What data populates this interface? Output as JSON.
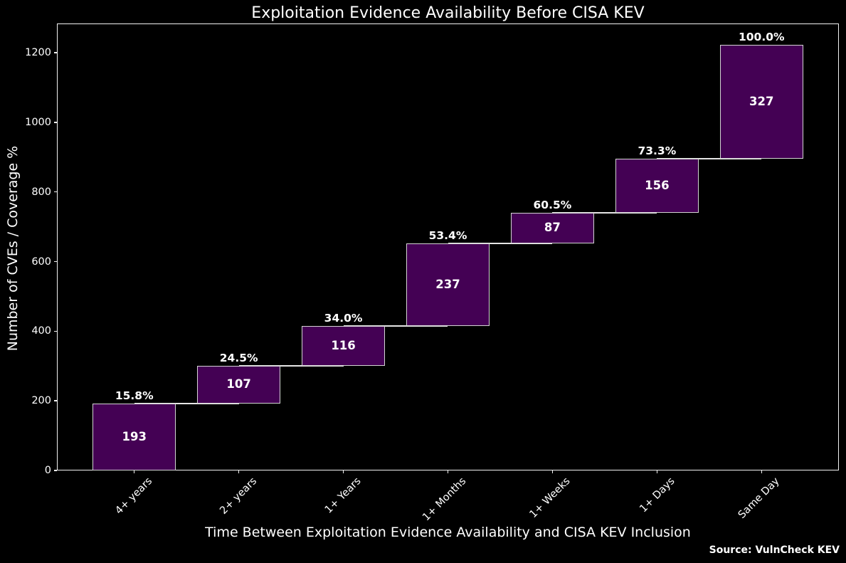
{
  "chart_data": {
    "type": "bar",
    "subtype": "waterfall",
    "title": "Exploitation Evidence Availability Before CISA KEV",
    "xlabel": "Time Between Exploitation Evidence Availability and CISA KEV Inclusion",
    "ylabel": "Number of CVEs / Coverage %",
    "source": "Source: VulnCheck KEV",
    "categories": [
      "4+ years",
      "2+ years",
      "1+ Years",
      "1+ Months",
      "1+ Weeks",
      "1+ Days",
      "Same Day"
    ],
    "values": [
      193,
      107,
      116,
      237,
      87,
      156,
      327
    ],
    "cumulative": [
      193,
      300,
      416,
      653,
      740,
      896,
      1223
    ],
    "percent_labels": [
      "15.8%",
      "24.5%",
      "34.0%",
      "53.4%",
      "60.5%",
      "73.3%",
      "100.0%"
    ],
    "yticks": [
      0,
      200,
      400,
      600,
      800,
      1000,
      1200
    ],
    "ylim": [
      0,
      1284
    ],
    "legend": null,
    "grid": false,
    "colors": {
      "background": "#000000",
      "bar_fill": "#440154",
      "bar_edge": "#d4d4d4",
      "connector": "#e6e6e6",
      "text": "#ffffff"
    }
  }
}
